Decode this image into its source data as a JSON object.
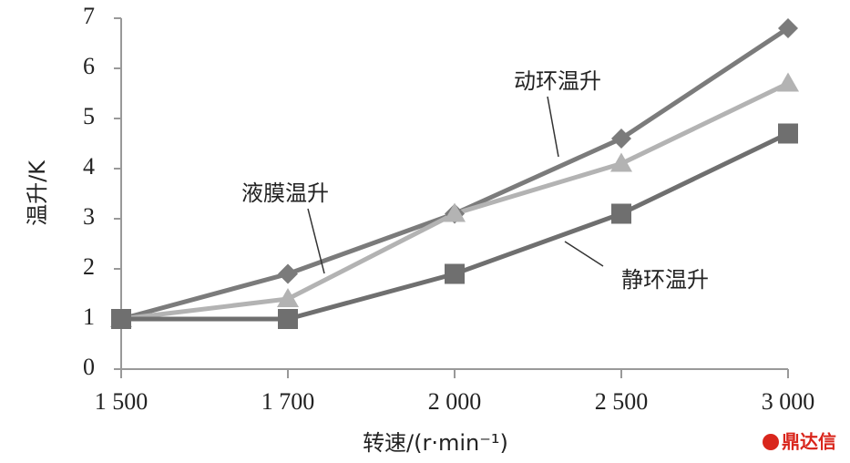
{
  "chart_data": {
    "type": "line",
    "y_label": "温升/K",
    "x_label": "转速/(r·min⁻¹)",
    "categories": [
      "1 500",
      "1 700",
      "2 000",
      "2 500",
      "3 000"
    ],
    "series": [
      {
        "name": "动环温升",
        "color": "#7b7b7b",
        "marker": "diamond",
        "values": [
          1,
          1.9,
          3.1,
          4.6,
          6.8
        ]
      },
      {
        "name": "液膜温升",
        "color": "#b3b3b3",
        "marker": "triangle",
        "values": [
          1,
          1.4,
          3.1,
          4.1,
          5.7
        ]
      },
      {
        "name": "静环温升",
        "color": "#6f6f6f",
        "marker": "square",
        "values": [
          1,
          1,
          1.9,
          3.1,
          4.7
        ]
      }
    ],
    "ylim": [
      0,
      7
    ],
    "yticks": [
      0,
      1,
      2,
      3,
      4,
      5,
      6,
      7
    ],
    "watermark": "鼎达信"
  }
}
